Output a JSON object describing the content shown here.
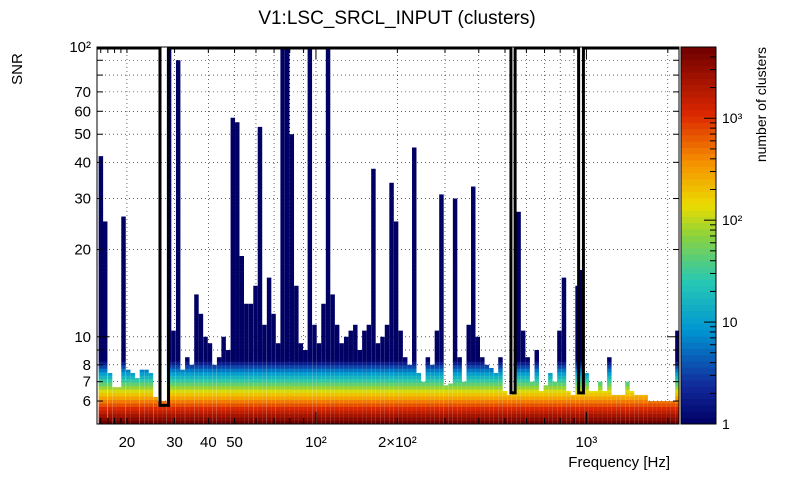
{
  "chart_data": {
    "type": "heatmap",
    "title": "V1:LSC_SRCL_INPUT (clusters)",
    "xlabel": "Frequency [Hz]",
    "ylabel": "SNR",
    "colorbar_label": "number of clusters",
    "x_scale": "log",
    "y_scale": "log",
    "xlim": [
      15.5,
      2200
    ],
    "ylim": [
      5.0,
      100
    ],
    "zlim": [
      1,
      5000
    ],
    "grid": true,
    "x_ticks": [
      {
        "value": 20,
        "label": "20"
      },
      {
        "value": 30,
        "label": "30"
      },
      {
        "value": 40,
        "label": "40"
      },
      {
        "value": 50,
        "label": "50"
      },
      {
        "value": 100,
        "label": "10²"
      },
      {
        "value": 200,
        "label": "2×10²"
      },
      {
        "value": 1000,
        "label": "10³"
      }
    ],
    "y_ticks": [
      {
        "value": 6,
        "label": "6"
      },
      {
        "value": 7,
        "label": "7"
      },
      {
        "value": 8,
        "label": "8"
      },
      {
        "value": 10,
        "label": "10"
      },
      {
        "value": 20,
        "label": "20"
      },
      {
        "value": 30,
        "label": "30"
      },
      {
        "value": 40,
        "label": "40"
      },
      {
        "value": 50,
        "label": "50"
      },
      {
        "value": 60,
        "label": "60"
      },
      {
        "value": 70,
        "label": "70"
      },
      {
        "value": 100,
        "label": "10²"
      }
    ],
    "z_ticks": [
      {
        "value": 1,
        "label": "1"
      },
      {
        "value": 10,
        "label": "10"
      },
      {
        "value": 100,
        "label": "10²"
      },
      {
        "value": 1000,
        "label": "10³"
      }
    ],
    "columns_max_snr": [
      {
        "f": 16.0,
        "snr": 42
      },
      {
        "f": 16.6,
        "snr": 25
      },
      {
        "f": 17.3,
        "snr": 7.5
      },
      {
        "f": 18.0,
        "snr": 6.7
      },
      {
        "f": 18.7,
        "snr": 6.7
      },
      {
        "f": 19.4,
        "snr": 26
      },
      {
        "f": 20.2,
        "snr": 7.7
      },
      {
        "f": 21.0,
        "snr": 7.5
      },
      {
        "f": 21.8,
        "snr": 7.2
      },
      {
        "f": 22.7,
        "snr": 7.7
      },
      {
        "f": 23.6,
        "snr": 7.7
      },
      {
        "f": 24.5,
        "snr": 7.5
      },
      {
        "f": 25.5,
        "snr": 6.2
      },
      {
        "f": 26.5,
        "snr": 6.0
      },
      {
        "f": 27.5,
        "snr": 6.0
      },
      {
        "f": 28.6,
        "snr": 100
      },
      {
        "f": 29.7,
        "snr": 10.5
      },
      {
        "f": 30.9,
        "snr": 90
      },
      {
        "f": 32.1,
        "snr": 7.7
      },
      {
        "f": 33.4,
        "snr": 8.5
      },
      {
        "f": 34.7,
        "snr": 8.0
      },
      {
        "f": 36.1,
        "snr": 14
      },
      {
        "f": 37.5,
        "snr": 12
      },
      {
        "f": 39.0,
        "snr": 10
      },
      {
        "f": 40.5,
        "snr": 9.5
      },
      {
        "f": 42.1,
        "snr": 8.0
      },
      {
        "f": 43.8,
        "snr": 8.5
      },
      {
        "f": 45.5,
        "snr": 10
      },
      {
        "f": 47.3,
        "snr": 9.0
      },
      {
        "f": 49.2,
        "snr": 57
      },
      {
        "f": 51.1,
        "snr": 55
      },
      {
        "f": 53.1,
        "snr": 19
      },
      {
        "f": 55.2,
        "snr": 13
      },
      {
        "f": 57.4,
        "snr": 13
      },
      {
        "f": 59.7,
        "snr": 15
      },
      {
        "f": 62.0,
        "snr": 53
      },
      {
        "f": 64.4,
        "snr": 11
      },
      {
        "f": 67.0,
        "snr": 16
      },
      {
        "f": 69.6,
        "snr": 12
      },
      {
        "f": 72.4,
        "snr": 9.5
      },
      {
        "f": 75.2,
        "snr": 100
      },
      {
        "f": 78.2,
        "snr": 100
      },
      {
        "f": 81.3,
        "snr": 50
      },
      {
        "f": 84.5,
        "snr": 15
      },
      {
        "f": 87.8,
        "snr": 9.5
      },
      {
        "f": 91.2,
        "snr": 9.0
      },
      {
        "f": 94.8,
        "snr": 100
      },
      {
        "f": 98.6,
        "snr": 11
      },
      {
        "f": 102.5,
        "snr": 9.5
      },
      {
        "f": 106.5,
        "snr": 13
      },
      {
        "f": 110.7,
        "snr": 100
      },
      {
        "f": 115.1,
        "snr": 14
      },
      {
        "f": 119.6,
        "snr": 11
      },
      {
        "f": 124.3,
        "snr": 9.5
      },
      {
        "f": 129.2,
        "snr": 10
      },
      {
        "f": 134.3,
        "snr": 10.5
      },
      {
        "f": 139.6,
        "snr": 11
      },
      {
        "f": 145.1,
        "snr": 9.0
      },
      {
        "f": 150.8,
        "snr": 10.5
      },
      {
        "f": 156.7,
        "snr": 11
      },
      {
        "f": 162.9,
        "snr": 38
      },
      {
        "f": 169.3,
        "snr": 9.5
      },
      {
        "f": 176.0,
        "snr": 10
      },
      {
        "f": 182.9,
        "snr": 11
      },
      {
        "f": 190.1,
        "snr": 34
      },
      {
        "f": 197.6,
        "snr": 25
      },
      {
        "f": 205.4,
        "snr": 10.5
      },
      {
        "f": 213.5,
        "snr": 8.5
      },
      {
        "f": 221.9,
        "snr": 8.0
      },
      {
        "f": 230.6,
        "snr": 45
      },
      {
        "f": 239.7,
        "snr": 7.5
      },
      {
        "f": 249.1,
        "snr": 7.0
      },
      {
        "f": 258.9,
        "snr": 8.5
      },
      {
        "f": 269.1,
        "snr": 8.0
      },
      {
        "f": 279.7,
        "snr": 10.5
      },
      {
        "f": 290.7,
        "snr": 31
      },
      {
        "f": 302.2,
        "snr": 6.8
      },
      {
        "f": 314.1,
        "snr": 6.9
      },
      {
        "f": 326.5,
        "snr": 30
      },
      {
        "f": 339.4,
        "snr": 8.5
      },
      {
        "f": 352.8,
        "snr": 7.0
      },
      {
        "f": 366.7,
        "snr": 11
      },
      {
        "f": 381.1,
        "snr": 33
      },
      {
        "f": 396.1,
        "snr": 10
      },
      {
        "f": 411.7,
        "snr": 8.5
      },
      {
        "f": 427.9,
        "snr": 8.0
      },
      {
        "f": 444.8,
        "snr": 7.8
      },
      {
        "f": 462.3,
        "snr": 7.5
      },
      {
        "f": 480.5,
        "snr": 8.5
      },
      {
        "f": 499.4,
        "snr": 6.5
      },
      {
        "f": 519.1,
        "snr": 6.3
      },
      {
        "f": 539.5,
        "snr": 6.5
      },
      {
        "f": 560.7,
        "snr": 27
      },
      {
        "f": 582.8,
        "snr": 10.5
      },
      {
        "f": 605.7,
        "snr": 8.5
      },
      {
        "f": 629.6,
        "snr": 7.0
      },
      {
        "f": 654.4,
        "snr": 9.0
      },
      {
        "f": 680.2,
        "snr": 6.5
      },
      {
        "f": 707.0,
        "snr": 6.8
      },
      {
        "f": 734.8,
        "snr": 7.5
      },
      {
        "f": 763.7,
        "snr": 7.0
      },
      {
        "f": 793.8,
        "snr": 10.5
      },
      {
        "f": 825.1,
        "snr": 16
      },
      {
        "f": 857.6,
        "snr": 6.5
      },
      {
        "f": 891.4,
        "snr": 6.3
      },
      {
        "f": 926.5,
        "snr": 15
      },
      {
        "f": 963.0,
        "snr": 17
      },
      {
        "f": 1000.9,
        "snr": 7.5
      },
      {
        "f": 1040.3,
        "snr": 6.5
      },
      {
        "f": 1081.3,
        "snr": 6.5
      },
      {
        "f": 1123.9,
        "snr": 7.0
      },
      {
        "f": 1168.2,
        "snr": 6.5
      },
      {
        "f": 1214.2,
        "snr": 8.5
      },
      {
        "f": 1262.0,
        "snr": 6.3
      },
      {
        "f": 1311.7,
        "snr": 6.3
      },
      {
        "f": 1363.4,
        "snr": 6.3
      },
      {
        "f": 1417.1,
        "snr": 7.0
      },
      {
        "f": 1472.9,
        "snr": 6.5
      },
      {
        "f": 1530.9,
        "snr": 6.3
      },
      {
        "f": 1591.2,
        "snr": 6.3
      },
      {
        "f": 1653.9,
        "snr": 6.3
      },
      {
        "f": 1719.0,
        "snr": 6.0
      },
      {
        "f": 1786.7,
        "snr": 6.0
      },
      {
        "f": 1857.1,
        "snr": 6.0
      },
      {
        "f": 1930.2,
        "snr": 6.0
      },
      {
        "f": 2006.2,
        "snr": 6.0
      },
      {
        "f": 2085.3,
        "snr": 6.0
      },
      {
        "f": 2167.4,
        "snr": 10.5
      }
    ],
    "veto_outline_f_ranges": [
      [
        15.5,
        26.5
      ],
      [
        28.5,
        526
      ],
      [
        545,
        936
      ],
      [
        975,
        2200
      ]
    ],
    "veto_outline_notch_snr": [
      5.8,
      6.4,
      6.4
    ]
  }
}
